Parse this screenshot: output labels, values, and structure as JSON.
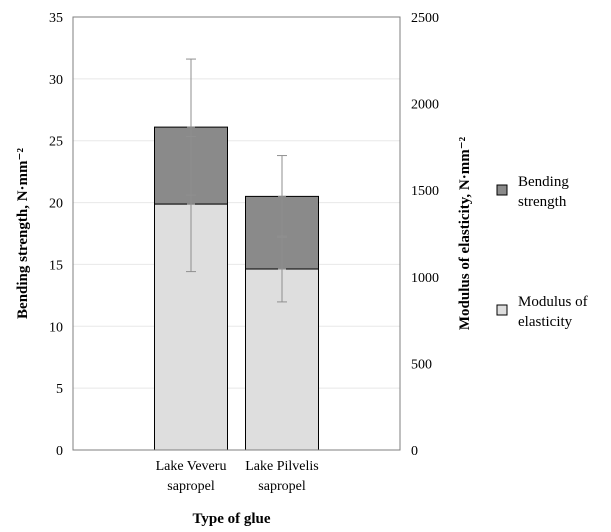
{
  "chart_data": {
    "type": "bar",
    "stacked": true,
    "categories": [
      [
        "Lake Veveru",
        "sapropel"
      ],
      [
        "Lake Pilvelis",
        "sapropel"
      ]
    ],
    "series": [
      {
        "name": "Bending strength",
        "axis": "left",
        "values": [
          26.1,
          20.5
        ],
        "error": [
          5.5,
          3.3
        ],
        "color": "#8a8a8a"
      },
      {
        "name": "Modulus of elasticity",
        "axis": "right",
        "values": [
          1420,
          1045
        ],
        "error": [
          390,
          190
        ],
        "color": "#dedede"
      }
    ],
    "xlabel": "Type of glue",
    "ylabel_left": "Bending strength, N·mm⁻²",
    "ylabel_right": "Modulus of elasticity, N·mm⁻²",
    "ylim_left": [
      0,
      35
    ],
    "ylim_right": [
      0,
      2500
    ],
    "yticks_left": [
      0,
      5,
      10,
      15,
      20,
      25,
      30,
      35
    ],
    "yticks_right": [
      0,
      500,
      1000,
      1500,
      2000,
      2500
    ],
    "grid": true,
    "legend": {
      "position": "right",
      "entries": [
        {
          "lines": [
            "Bending",
            "strength"
          ],
          "color": "#8a8a8a"
        },
        {
          "lines": [
            "Modulus of",
            "elasticity"
          ],
          "color": "#dedede"
        }
      ]
    }
  }
}
